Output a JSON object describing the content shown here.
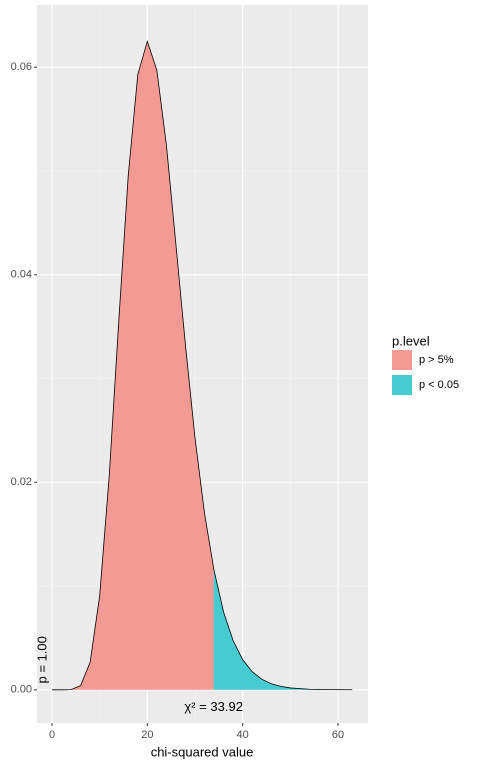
{
  "chart_data": {
    "type": "area",
    "x_label": "chi-squared value",
    "series": [
      {
        "name": "p > 5%",
        "color": "#f49a94",
        "x": [
          0,
          2,
          4,
          6,
          8,
          10,
          12,
          14,
          16,
          18,
          20,
          22,
          24,
          26,
          28,
          30,
          32,
          33.92
        ],
        "values": [
          0,
          0,
          1.9e-05,
          0.000405,
          0.00265,
          0.00906,
          0.0206,
          0.0355,
          0.0496,
          0.0593,
          0.0625,
          0.0597,
          0.0525,
          0.0429,
          0.0332,
          0.0243,
          0.017,
          0.0117
        ]
      },
      {
        "name": "p < 0.05",
        "color": "#45cbd0",
        "x": [
          33.92,
          34,
          36,
          38,
          40,
          42,
          44,
          46,
          48,
          50,
          54,
          58,
          63
        ],
        "values": [
          0.0117,
          0.0115,
          0.00749,
          0.00474,
          0.00291,
          0.00174,
          0.00102,
          0.00058,
          0.00033,
          0.00018,
          5.3e-05,
          1.5e-05,
          2.8e-06
        ]
      }
    ],
    "xlim": [
      -3.15,
      66.3
    ],
    "xticks": [
      0,
      20,
      40,
      60
    ],
    "x_minor_ticks": [
      10,
      30,
      50
    ],
    "ylim": [
      -0.0032,
      0.066
    ],
    "yticks": [
      {
        "value": 0,
        "label": "0.00"
      },
      {
        "value": 0.02,
        "label": "0.02"
      },
      {
        "value": 0.04,
        "label": "0.04"
      },
      {
        "value": 0.06,
        "label": "0.06"
      }
    ],
    "y_minor_ticks": [
      0.01,
      0.03,
      0.05
    ],
    "grid": true,
    "legend_title": "p.level",
    "legend_position": "right",
    "annotations": [
      {
        "text": "p = 1.00",
        "x": 0
      },
      {
        "text": "χ² = 33.92",
        "x": 33.92
      }
    ]
  }
}
